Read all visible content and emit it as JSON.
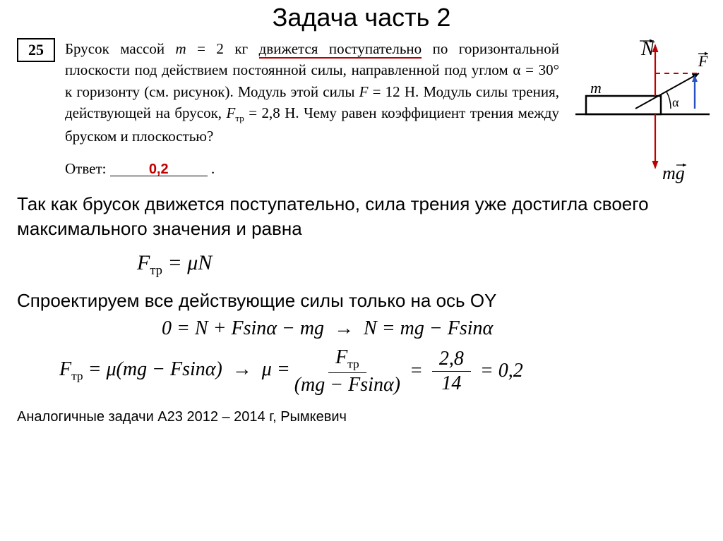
{
  "title": "Задача часть 2",
  "question_number": "25",
  "problem_html": "Брусок массой <i>m</i> = 2 кг <span class=\"underline-red\">движется поступательно</span> по горизонтальной плоскости под действием постоянной силы, направленной под углом α = 30° к горизонту (см. рисунок). Модуль этой силы <i>F</i> = 12 Н. Модуль силы трения, действующей на брусок, <i>F</i><sub>тр</sub> = 2,8 Н. Чему равен коэффициент трения между бруском и плоскостью?",
  "answer_label": "Ответ:",
  "answer_value": "0,2",
  "explain1": "Так как брусок движется поступательно, сила трения уже достигла своего максимального значения и равна",
  "formula1": "F<sub>тр</sub> = μN",
  "explain2": "Спроектируем все действующие силы только на ось OY",
  "formula2": "0 = N + Fsinα − mg &nbsp;→&nbsp; N = mg − Fsinα",
  "formula3_lhs": "F<sub>тр</sub> = μ(mg − Fsinα) &nbsp;→&nbsp; μ =",
  "frac1_top": "F<sub>тр</sub>",
  "frac1_bot": "(mg − Fsinα)",
  "frac2_top": "2,8",
  "frac2_bot": "14",
  "formula3_result": "= 0,2",
  "footnote": "Аналогичные задачи А23 2012 – 2014 г, Рымкевич",
  "diagram": {
    "N_label": "N",
    "F_label": "F",
    "m_label": "m",
    "alpha_label": "α",
    "mg_label": "mg",
    "colors": {
      "red": "#c00000",
      "black": "#000000",
      "blue": "#2a52be"
    }
  }
}
